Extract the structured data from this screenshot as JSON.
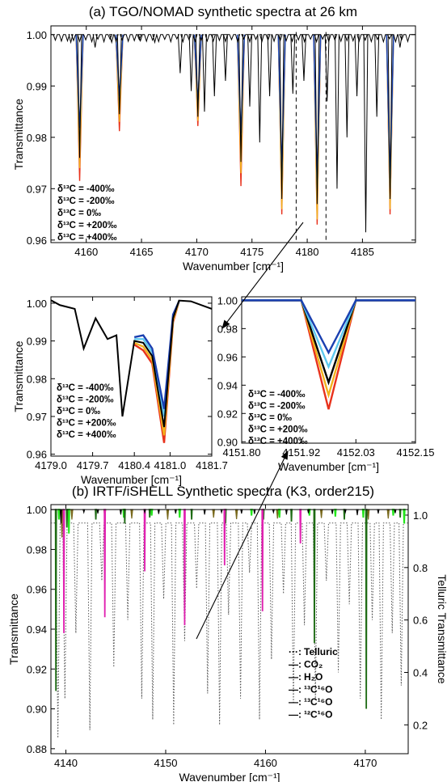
{
  "chart_data": [
    {
      "id": "panel-a",
      "type": "line",
      "title": "(a) TGO/NOMAD synthetic spectra at 26 km",
      "xlabel": "Wavenumber [cm⁻¹]",
      "ylabel": "Transmittance",
      "xlim": [
        4156.8,
        4189.8
      ],
      "ylim": [
        0.9595,
        1.0017
      ],
      "xticks": [
        4160,
        4165,
        4170,
        4175,
        4180,
        4185
      ],
      "yticks": [
        0.96,
        0.97,
        0.98,
        0.99,
        1.0
      ],
      "ytick_labels": [
        "0.96",
        "0.97",
        "0.98",
        "0.99",
        "1.00"
      ],
      "zoom_window": [
        4179.0,
        4181.7
      ],
      "legend_position": "bottom-left",
      "series": [
        {
          "name": "δ¹³C = -400‰",
          "color": "#1a3fb0"
        },
        {
          "name": "δ¹³C = -200‰",
          "color": "#5ec8ee"
        },
        {
          "name": "δ¹³C = 0‰",
          "color": "#000000"
        },
        {
          "name": "δ¹³C = +200‰",
          "color": "#f2b21d"
        },
        {
          "name": "δ¹³C = +400‰",
          "color": "#e8321c"
        }
      ],
      "isotope_lines": [
        {
          "x": 4159.4,
          "depths": [
            0.9818,
            0.98,
            0.976,
            0.974,
            0.9715
          ]
        },
        {
          "x": 4163.0,
          "depths": [
            0.988,
            0.987,
            0.9845,
            0.983,
            0.9812
          ]
        },
        {
          "x": 4170.1,
          "depths": [
            0.987,
            0.9865,
            0.984,
            0.9832,
            0.9822
          ]
        },
        {
          "x": 4174.0,
          "depths": [
            0.9808,
            0.979,
            0.9752,
            0.973,
            0.9705
          ]
        },
        {
          "x": 4177.7,
          "depths": [
            0.974,
            0.9718,
            0.968,
            0.966,
            0.965
          ]
        },
        {
          "x": 4180.9,
          "depths": [
            0.972,
            0.97,
            0.967,
            0.964,
            0.963
          ]
        },
        {
          "x": 4187.5,
          "depths": [
            0.972,
            0.97,
            0.968,
            0.966,
            0.965
          ]
        }
      ],
      "background_lines": [
        {
          "x": 4158.6,
          "depth": 0.9985
        },
        {
          "x": 4160.8,
          "depth": 0.9975
        },
        {
          "x": 4162.3,
          "depth": 0.9985
        },
        {
          "x": 4164.8,
          "depth": 0.999
        },
        {
          "x": 4166.2,
          "depth": 0.9985
        },
        {
          "x": 4168.5,
          "depth": 0.9925
        },
        {
          "x": 4169.5,
          "depth": 0.989
        },
        {
          "x": 4170.7,
          "depth": 0.985
        },
        {
          "x": 4171.6,
          "depth": 0.988
        },
        {
          "x": 4172.6,
          "depth": 0.991
        },
        {
          "x": 4174.8,
          "depth": 0.986
        },
        {
          "x": 4175.7,
          "depth": 0.979
        },
        {
          "x": 4176.6,
          "depth": 0.988
        },
        {
          "x": 4178.7,
          "depth": 0.9885
        },
        {
          "x": 4179.7,
          "depth": 0.991
        },
        {
          "x": 4181.8,
          "depth": 0.987
        },
        {
          "x": 4182.7,
          "depth": 0.97
        },
        {
          "x": 4183.6,
          "depth": 0.98
        },
        {
          "x": 4184.5,
          "depth": 0.988
        },
        {
          "x": 4185.3,
          "depth": 0.9615
        },
        {
          "x": 4186.3,
          "depth": 0.984
        },
        {
          "x": 4188.4,
          "depth": 0.9975
        }
      ]
    },
    {
      "id": "panel-zoom-left",
      "type": "line",
      "title": "",
      "xlabel": "Wavenumber [cm⁻¹]",
      "ylabel": "Transmittance",
      "xlim": [
        4179.0,
        4181.7
      ],
      "ylim": [
        0.9595,
        1.0017
      ],
      "xticks": [
        4179.0,
        4179.7,
        4180.4,
        4181.0,
        4181.7
      ],
      "xtick_labels": [
        "4179.0",
        "4179.7",
        "4180.4",
        "4181.0",
        "4181.7"
      ],
      "yticks": [
        0.96,
        0.97,
        0.98,
        0.99,
        1.0
      ],
      "ytick_labels": [
        "0.96",
        "0.97",
        "0.98",
        "0.99",
        "1.00"
      ],
      "legend_position": "bottom-left",
      "series": [
        {
          "name": "δ¹³C = -400‰",
          "color": "#1a3fb0",
          "x": [
            4180.4,
            4180.55,
            4180.7,
            4180.9,
            4181.05,
            4181.15
          ],
          "y": [
            0.991,
            0.9915,
            0.988,
            0.972,
            0.997,
            1.0005
          ]
        },
        {
          "name": "δ¹³C = -200‰",
          "color": "#5ec8ee",
          "x": [
            4180.4,
            4180.55,
            4180.7,
            4180.9,
            4181.05,
            4181.15
          ],
          "y": [
            0.9905,
            0.9905,
            0.987,
            0.97,
            0.9965,
            1.0005
          ]
        },
        {
          "name": "δ¹³C = 0‰",
          "color": "#000000",
          "x": [
            4179.0,
            4179.15,
            4179.4,
            4179.55,
            4179.75,
            4179.95,
            4180.1,
            4180.2,
            4180.4,
            4180.55,
            4180.7,
            4180.9,
            4181.05,
            4181.15,
            4181.35,
            4181.7
          ],
          "y": [
            1.0008,
            0.9995,
            0.9985,
            0.988,
            0.996,
            0.9905,
            0.9915,
            0.97,
            0.99,
            0.9895,
            0.986,
            0.9672,
            0.996,
            1.0007,
            1.0005,
            0.9985
          ]
        },
        {
          "name": "δ¹³C = +200‰",
          "color": "#f2b21d",
          "x": [
            4180.4,
            4180.55,
            4180.7,
            4180.9,
            4181.05,
            4181.15
          ],
          "y": [
            0.9895,
            0.9885,
            0.985,
            0.965,
            0.9955,
            1.0005
          ]
        },
        {
          "name": "δ¹³C = +400‰",
          "color": "#e8321c",
          "x": [
            4180.4,
            4180.55,
            4180.7,
            4180.9,
            4181.05,
            4181.15
          ],
          "y": [
            0.989,
            0.9875,
            0.984,
            0.963,
            0.995,
            1.0005
          ]
        }
      ]
    },
    {
      "id": "panel-zoom-right",
      "type": "line",
      "title": "",
      "xlabel": "Wavenumber [cm⁻¹]",
      "ylabel": "",
      "xlim": [
        4151.8,
        4152.15
      ],
      "ylim": [
        0.899,
        1.0025
      ],
      "xticks": [
        4151.8,
        4151.92,
        4152.03,
        4152.15
      ],
      "xtick_labels": [
        "4151.80",
        "4151.92",
        "4152.03",
        "4152.15"
      ],
      "yticks": [
        0.9,
        0.92,
        0.94,
        0.96,
        0.98,
        1.0
      ],
      "ytick_labels": [
        "0.90",
        "0.92",
        "0.94",
        "0.96",
        "0.98",
        "1.00"
      ],
      "legend_position": "bottom-left",
      "series": [
        {
          "name": "δ¹³C = -400‰",
          "color": "#1a3fb0",
          "x": [
            4151.8,
            4151.92,
            4151.975,
            4152.03,
            4152.15
          ],
          "y": [
            1.0,
            1.0,
            0.963,
            1.0,
            1.0
          ]
        },
        {
          "name": "δ¹³C = -200‰",
          "color": "#5ec8ee",
          "x": [
            4151.8,
            4151.92,
            4151.975,
            4152.03,
            4152.15
          ],
          "y": [
            1.0,
            1.0,
            0.953,
            1.0,
            1.0
          ]
        },
        {
          "name": "δ¹³C = 0‰",
          "color": "#000000",
          "x": [
            4151.8,
            4151.92,
            4151.975,
            4152.03,
            4152.15
          ],
          "y": [
            1.0,
            1.0,
            0.942,
            1.0,
            1.0
          ]
        },
        {
          "name": "δ¹³C = +200‰",
          "color": "#f2b21d",
          "x": [
            4151.8,
            4151.92,
            4151.975,
            4152.03,
            4152.15
          ],
          "y": [
            1.0,
            1.0,
            0.933,
            1.0,
            1.0
          ]
        },
        {
          "name": "δ¹³C = +400‰",
          "color": "#e8321c",
          "x": [
            4151.8,
            4151.92,
            4151.975,
            4152.03,
            4152.15
          ],
          "y": [
            1.0,
            1.0,
            0.923,
            1.0,
            1.0
          ]
        }
      ]
    },
    {
      "id": "panel-b",
      "type": "line",
      "title": "(b) IRTF/iSHELL Synthetic spectra (K3, order215)",
      "xlabel": "Wavenumber [cm⁻¹]",
      "ylabel": "Transmittance",
      "y2label": "Telluric Transmittance",
      "xlim": [
        4138.5,
        4174.3
      ],
      "ylim": [
        0.8775,
        1.0025
      ],
      "y2lim": [
        0.09,
        1.04
      ],
      "xticks": [
        4140,
        4150,
        4160,
        4170
      ],
      "yticks": [
        0.88,
        0.9,
        0.92,
        0.94,
        0.96,
        0.98,
        1.0
      ],
      "ytick_labels": [
        "0.88",
        "0.90",
        "0.92",
        "0.94",
        "0.96",
        "0.98",
        "1.00"
      ],
      "y2ticks": [
        0.2,
        0.4,
        0.6,
        0.8,
        1.0
      ],
      "y2tick_labels": [
        "0.2",
        "0.4",
        "0.6",
        "0.8",
        "1.0"
      ],
      "legend_position": "bottom-right",
      "legend": [
        {
          "name": "Telluric",
          "marker": "···:",
          "color": "#555555"
        },
        {
          "name": "CO₂",
          "marker": "—:",
          "color": "#000000"
        },
        {
          "name": "H₂O",
          "marker": "—:",
          "color": "#7a6a1e"
        },
        {
          "name": "¹³C¹⁶O",
          "marker": "—:",
          "color": "#1e6b14"
        },
        {
          "name": "¹³C¹⁶O",
          "marker": "—:",
          "color": "#e020b0"
        },
        {
          "name": "¹²C¹⁶O",
          "marker": "—:",
          "color": "#22e61a"
        }
      ],
      "telluric_lines": [
        {
          "x": 4139.2,
          "t": 0.15
        },
        {
          "x": 4139.9,
          "t": 0.3
        },
        {
          "x": 4141.0,
          "t": 0.55
        },
        {
          "x": 4142.4,
          "t": 0.18
        },
        {
          "x": 4143.6,
          "t": 0.75
        },
        {
          "x": 4144.8,
          "t": 0.42
        },
        {
          "x": 4146.2,
          "t": 0.6
        },
        {
          "x": 4147.6,
          "t": 0.3
        },
        {
          "x": 4148.7,
          "t": 0.22
        },
        {
          "x": 4149.8,
          "t": 0.68
        },
        {
          "x": 4150.8,
          "t": 0.2
        },
        {
          "x": 4151.9,
          "t": 0.52
        },
        {
          "x": 4153.1,
          "t": 0.72
        },
        {
          "x": 4154.2,
          "t": 0.32
        },
        {
          "x": 4155.4,
          "t": 0.2
        },
        {
          "x": 4156.3,
          "t": 0.62
        },
        {
          "x": 4157.5,
          "t": 0.3
        },
        {
          "x": 4158.4,
          "t": 0.78
        },
        {
          "x": 4159.4,
          "t": 0.22
        },
        {
          "x": 4160.6,
          "t": 0.45
        },
        {
          "x": 4161.8,
          "t": 0.7
        },
        {
          "x": 4162.8,
          "t": 0.28
        },
        {
          "x": 4163.9,
          "t": 0.58
        },
        {
          "x": 4165.0,
          "t": 0.3
        },
        {
          "x": 4166.1,
          "t": 0.75
        },
        {
          "x": 4167.3,
          "t": 0.4
        },
        {
          "x": 4168.4,
          "t": 0.66
        },
        {
          "x": 4169.5,
          "t": 0.3
        },
        {
          "x": 4170.7,
          "t": 0.6
        },
        {
          "x": 4171.6,
          "t": 0.22
        },
        {
          "x": 4172.7,
          "t": 0.55
        },
        {
          "x": 4173.6,
          "t": 0.35
        }
      ],
      "co2_lines": [
        {
          "x": 4139.5,
          "y": 0.993
        },
        {
          "x": 4141.8,
          "y": 0.9985
        },
        {
          "x": 4143.2,
          "y": 0.998
        },
        {
          "x": 4145.5,
          "y": 0.9975
        },
        {
          "x": 4147.9,
          "y": 0.9985
        },
        {
          "x": 4149.3,
          "y": 0.9978
        },
        {
          "x": 4151.0,
          "y": 0.998
        },
        {
          "x": 4153.9,
          "y": 0.9975
        },
        {
          "x": 4155.6,
          "y": 0.9985
        },
        {
          "x": 4157.6,
          "y": 0.998
        },
        {
          "x": 4158.9,
          "y": 0.9978
        },
        {
          "x": 4160.8,
          "y": 0.9985
        },
        {
          "x": 4162.1,
          "y": 0.9975
        },
        {
          "x": 4164.3,
          "y": 0.9982
        },
        {
          "x": 4166.7,
          "y": 0.9978
        },
        {
          "x": 4168.0,
          "y": 0.9985
        },
        {
          "x": 4169.2,
          "y": 0.9972
        },
        {
          "x": 4171.3,
          "y": 0.998
        },
        {
          "x": 4173.0,
          "y": 0.9982
        }
      ],
      "h2o_lines": [
        {
          "x": 4139.6,
          "y": 0.986
        },
        {
          "x": 4140.6,
          "y": 0.995
        },
        {
          "x": 4143.9,
          "y": 0.996
        },
        {
          "x": 4146.6,
          "y": 0.9955
        },
        {
          "x": 4150.2,
          "y": 0.995
        },
        {
          "x": 4154.8,
          "y": 0.996
        },
        {
          "x": 4157.1,
          "y": 0.9952
        },
        {
          "x": 4161.2,
          "y": 0.9955
        },
        {
          "x": 4165.6,
          "y": 0.9958
        },
        {
          "x": 4170.3,
          "y": 0.995
        },
        {
          "x": 4172.3,
          "y": 0.9955
        }
      ],
      "c13o_green_lines": [
        {
          "x": 4139.0,
          "y": 0.909
        },
        {
          "x": 4140.1,
          "y": 0.991
        },
        {
          "x": 4143.0,
          "y": 0.995
        },
        {
          "x": 4145.9,
          "y": 0.993
        },
        {
          "x": 4148.4,
          "y": 0.996
        },
        {
          "x": 4152.6,
          "y": 0.995
        },
        {
          "x": 4156.0,
          "y": 0.993
        },
        {
          "x": 4159.8,
          "y": 0.995
        },
        {
          "x": 4162.6,
          "y": 0.994
        },
        {
          "x": 4164.9,
          "y": 0.933
        },
        {
          "x": 4167.9,
          "y": 0.995
        },
        {
          "x": 4170.1,
          "y": 0.9
        },
        {
          "x": 4173.5,
          "y": 0.996
        }
      ],
      "c13o_magenta_lines": [
        {
          "x": 4139.8,
          "y": 0.938
        },
        {
          "x": 4143.9,
          "y": 0.946
        },
        {
          "x": 4147.9,
          "y": 0.969
        },
        {
          "x": 4151.9,
          "y": 0.942
        },
        {
          "x": 4155.9,
          "y": 0.972
        },
        {
          "x": 4159.7,
          "y": 0.949
        },
        {
          "x": 4163.5,
          "y": 0.983
        }
      ],
      "c12o_lines": [
        {
          "x": 4139.3,
          "y": 0.995
        },
        {
          "x": 4140.3,
          "y": 0.988
        },
        {
          "x": 4145.8,
          "y": 0.996
        },
        {
          "x": 4148.6,
          "y": 0.997
        },
        {
          "x": 4151.4,
          "y": 0.996
        },
        {
          "x": 4158.6,
          "y": 0.997
        },
        {
          "x": 4161.4,
          "y": 0.996
        },
        {
          "x": 4164.4,
          "y": 0.997
        },
        {
          "x": 4167.0,
          "y": 0.9965
        },
        {
          "x": 4169.8,
          "y": 0.996
        },
        {
          "x": 4172.8,
          "y": 0.997
        },
        {
          "x": 4173.9,
          "y": 0.993
        }
      ]
    }
  ]
}
